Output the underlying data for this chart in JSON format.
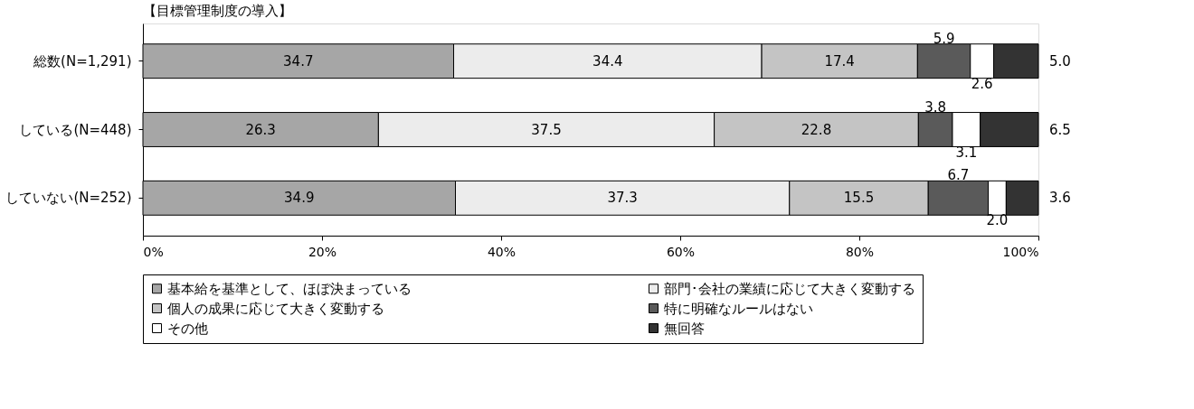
{
  "chart_data": {
    "type": "bar",
    "orientation": "horizontal",
    "stacked": true,
    "subtitle": "【目標管理制度の導入】",
    "categories": [
      "総数(N=1,291)",
      "している(N=448)",
      "していない(N=252)"
    ],
    "series": [
      {
        "name": "基本給を基準として、ほぼ決まっている",
        "color": "#a6a6a6",
        "values": [
          34.7,
          26.3,
          34.9
        ],
        "value_labels": [
          "34.7",
          "26.3",
          "34.9"
        ]
      },
      {
        "name": "部門･会社の業績に応じて大きく変動する",
        "color": "#ececec",
        "values": [
          34.4,
          37.5,
          37.3
        ],
        "value_labels": [
          "34.4",
          "37.5",
          "37.3"
        ]
      },
      {
        "name": "個人の成果に応じて大きく変動する",
        "color": "#c4c4c4",
        "values": [
          17.4,
          22.8,
          15.5
        ],
        "value_labels": [
          "17.4",
          "22.8",
          "15.5"
        ]
      },
      {
        "name": "特に明確なルールはない",
        "color": "#5a5a5a",
        "values": [
          5.9,
          3.8,
          6.7
        ],
        "value_labels": [
          "5.9",
          "3.8",
          "6.7"
        ]
      },
      {
        "name": "その他",
        "color": "#ffffff",
        "values": [
          2.6,
          3.1,
          2.0
        ],
        "value_labels": [
          "2.6",
          "3.1",
          "2.0"
        ]
      },
      {
        "name": "無回答",
        "color": "#333333",
        "values": [
          5.0,
          6.5,
          3.6
        ],
        "value_labels": [
          "5.0",
          "6.5",
          "3.6"
        ]
      }
    ],
    "xlim": [
      0,
      100
    ],
    "xticks": [
      {
        "value": 0,
        "label": "0%"
      },
      {
        "value": 20,
        "label": "20%"
      },
      {
        "value": 40,
        "label": "40%"
      },
      {
        "value": 60,
        "label": "60%"
      },
      {
        "value": 80,
        "label": "80%"
      },
      {
        "value": 100,
        "label": "100%"
      }
    ],
    "legend": "bottom",
    "grid": false
  }
}
